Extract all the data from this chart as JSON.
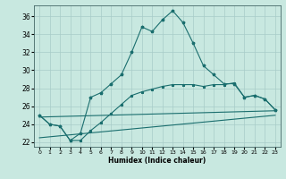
{
  "title": "",
  "xlabel": "Humidex (Indice chaleur)",
  "xlim": [
    -0.5,
    23.5
  ],
  "ylim": [
    21.5,
    37.2
  ],
  "yticks": [
    22,
    24,
    26,
    28,
    30,
    32,
    34,
    36
  ],
  "xticks": [
    0,
    1,
    2,
    3,
    4,
    5,
    6,
    7,
    8,
    9,
    10,
    11,
    12,
    13,
    14,
    15,
    16,
    17,
    18,
    19,
    20,
    21,
    22,
    23
  ],
  "bg_color": "#c8e8e0",
  "grid_color": "#a8ccc8",
  "line_color": "#1a6e6e",
  "line1_x": [
    0,
    1,
    2,
    3,
    4,
    5,
    6,
    7,
    8,
    9,
    10,
    11,
    12,
    13,
    14,
    15,
    16,
    17,
    18,
    19,
    20,
    21,
    22,
    23
  ],
  "line1_y": [
    25.0,
    24.0,
    23.8,
    22.2,
    23.0,
    27.0,
    27.5,
    28.5,
    29.5,
    32.0,
    34.8,
    34.3,
    35.6,
    36.6,
    35.3,
    33.0,
    30.5,
    29.5,
    28.5,
    28.5,
    27.0,
    27.2,
    26.8,
    25.6
  ],
  "line2_x": [
    0,
    1,
    2,
    3,
    4,
    5,
    6,
    7,
    8,
    9,
    10,
    11,
    12,
    13,
    14,
    15,
    16,
    17,
    18,
    19,
    20,
    21,
    22,
    23
  ],
  "line2_y": [
    25.0,
    24.0,
    23.8,
    22.2,
    22.2,
    23.3,
    24.2,
    25.2,
    26.2,
    27.2,
    27.6,
    27.9,
    28.2,
    28.4,
    28.4,
    28.4,
    28.2,
    28.4,
    28.4,
    28.6,
    27.0,
    27.2,
    26.8,
    25.6
  ],
  "line3_x": [
    0,
    23
  ],
  "line3_y": [
    24.8,
    25.5
  ],
  "line4_x": [
    0,
    23
  ],
  "line4_y": [
    22.5,
    25.0
  ]
}
